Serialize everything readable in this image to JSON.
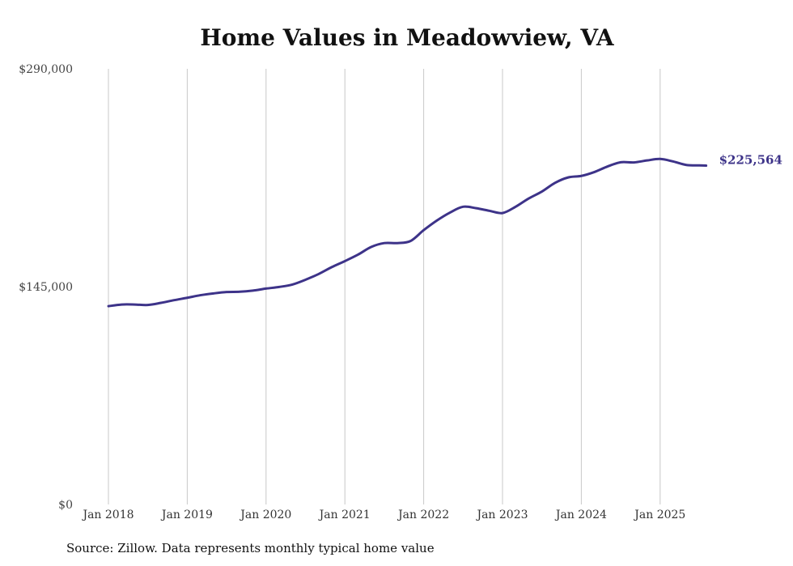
{
  "source_note": "Source: Zillow. Data represents monthly typical home value",
  "colors": {
    "line": "#3d3389",
    "grid": "#c8c8c8",
    "end_label": "#3d3389"
  },
  "chart_data": {
    "type": "line",
    "title": "Home Values in Meadowview, VA",
    "xlabel": "",
    "ylabel": "",
    "ylim": [
      0,
      290000
    ],
    "yticks": [
      0,
      145000,
      290000
    ],
    "ytick_labels": [
      "$0",
      "$145,000",
      "$290,000"
    ],
    "xtick_dates": [
      "2018-01",
      "2019-01",
      "2020-01",
      "2021-01",
      "2022-01",
      "2023-01",
      "2024-01",
      "2025-01"
    ],
    "xtick_labels": [
      "Jan 2018",
      "Jan 2019",
      "Jan 2020",
      "Jan 2021",
      "Jan 2022",
      "Jan 2023",
      "Jan 2024",
      "Jan 2025"
    ],
    "grid": "vertical",
    "end_label": "$225,564",
    "series": [
      {
        "x": [
          "2018-01",
          "2018-03",
          "2018-05",
          "2018-07",
          "2018-09",
          "2018-11",
          "2019-01",
          "2019-03",
          "2019-05",
          "2019-07",
          "2019-09",
          "2019-11",
          "2020-01",
          "2020-03",
          "2020-05",
          "2020-07",
          "2020-09",
          "2020-11",
          "2021-01",
          "2021-03",
          "2021-05",
          "2021-07",
          "2021-09",
          "2021-11",
          "2022-01",
          "2022-03",
          "2022-05",
          "2022-07",
          "2022-09",
          "2022-11",
          "2023-01",
          "2023-03",
          "2023-05",
          "2023-07",
          "2023-09",
          "2023-11",
          "2024-01",
          "2024-03",
          "2024-05",
          "2024-07",
          "2024-09",
          "2024-11",
          "2025-01",
          "2025-03",
          "2025-05",
          "2025-07",
          "2025-08"
        ],
        "values": [
          132000,
          133100,
          133100,
          132800,
          134200,
          136000,
          137600,
          139300,
          140500,
          141400,
          141600,
          142400,
          143700,
          144800,
          146400,
          149600,
          153400,
          158000,
          162000,
          166300,
          171400,
          174000,
          174000,
          175400,
          182600,
          189000,
          194300,
          198200,
          197200,
          195500,
          194000,
          198200,
          203700,
          208300,
          214100,
          217700,
          218700,
          221300,
          225000,
          227800,
          227700,
          229000,
          230000,
          228300,
          226000,
          225700,
          225564
        ]
      }
    ]
  }
}
